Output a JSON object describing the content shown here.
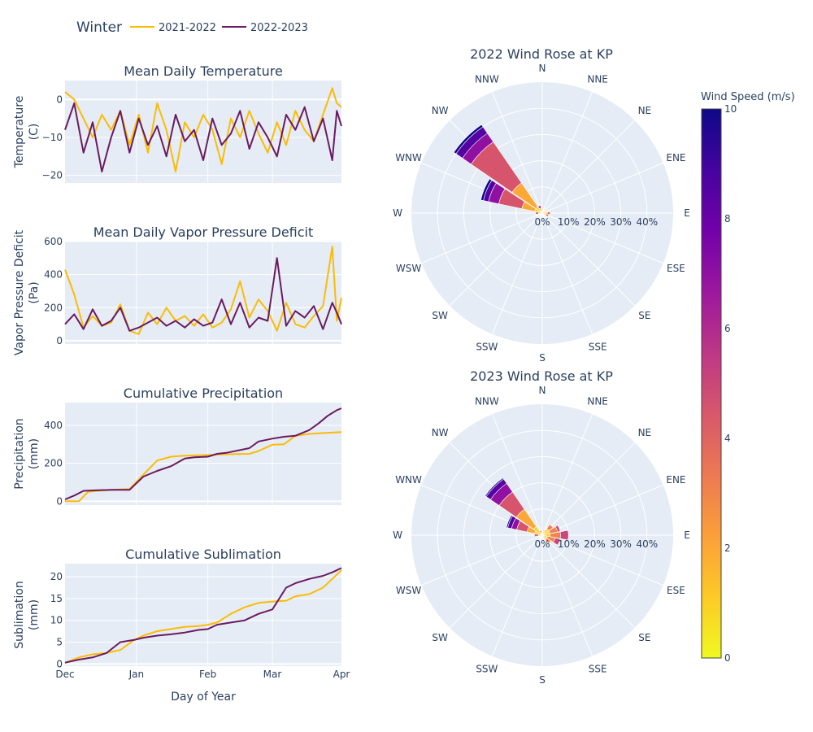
{
  "legend": {
    "title": "Winter",
    "items": [
      {
        "label": "2021-2022",
        "color": "#fbbc05"
      },
      {
        "label": "2022-2023",
        "color": "#6a1b5f"
      }
    ]
  },
  "chart_data": [
    {
      "type": "line",
      "title": "Mean Daily Temperature",
      "ylabel": "Temperature (C)",
      "ylim": [
        -22,
        5
      ],
      "yticks": [
        0,
        -10,
        -20
      ],
      "x_domain": [
        0,
        120
      ],
      "grid": true,
      "series": [
        {
          "name": "2021-2022",
          "color": "#fbbc05",
          "x": [
            0,
            4,
            8,
            12,
            16,
            20,
            24,
            28,
            32,
            36,
            40,
            44,
            48,
            52,
            56,
            60,
            64,
            68,
            72,
            76,
            80,
            84,
            88,
            92,
            96,
            100,
            104,
            108,
            112,
            116,
            118,
            120
          ],
          "y": [
            2,
            0,
            -5,
            -10,
            -4,
            -8,
            -3,
            -12,
            -4,
            -14,
            -1,
            -8,
            -19,
            -6,
            -10,
            -4,
            -8,
            -17,
            -5,
            -10,
            -3,
            -9,
            -14,
            -6,
            -12,
            -3,
            -8,
            -11,
            -4,
            3,
            -1,
            -2
          ]
        },
        {
          "name": "2022-2023",
          "color": "#6a1b5f",
          "x": [
            0,
            4,
            8,
            12,
            16,
            20,
            24,
            28,
            32,
            36,
            40,
            44,
            48,
            52,
            56,
            60,
            64,
            68,
            72,
            76,
            80,
            84,
            88,
            92,
            96,
            100,
            104,
            108,
            112,
            116,
            118,
            120
          ],
          "y": [
            -8,
            -1,
            -14,
            -6,
            -19,
            -10,
            -3,
            -14,
            -5,
            -12,
            -7,
            -15,
            -4,
            -11,
            -8,
            -16,
            -5,
            -12,
            -9,
            -3,
            -13,
            -6,
            -10,
            -15,
            -4,
            -8,
            -2,
            -11,
            -5,
            -16,
            -3,
            -7
          ]
        }
      ]
    },
    {
      "type": "line",
      "title": "Mean Daily Vapor Pressure Deficit",
      "ylabel": "Vapor Pressure Deficit (Pa)",
      "ylim": [
        -20,
        600
      ],
      "yticks": [
        0,
        200,
        400,
        600
      ],
      "x_domain": [
        0,
        120
      ],
      "grid": true,
      "series": [
        {
          "name": "2021-2022",
          "color": "#fbbc05",
          "x": [
            0,
            4,
            8,
            12,
            16,
            20,
            24,
            28,
            32,
            36,
            40,
            44,
            48,
            52,
            56,
            60,
            64,
            68,
            72,
            76,
            80,
            84,
            88,
            92,
            96,
            100,
            104,
            108,
            112,
            116,
            118,
            120
          ],
          "y": [
            430,
            280,
            80,
            150,
            90,
            110,
            220,
            60,
            40,
            170,
            100,
            200,
            120,
            150,
            90,
            160,
            80,
            110,
            190,
            360,
            140,
            250,
            180,
            60,
            230,
            100,
            80,
            150,
            210,
            570,
            120,
            260
          ]
        },
        {
          "name": "2022-2023",
          "color": "#6a1b5f",
          "x": [
            0,
            4,
            8,
            12,
            16,
            20,
            24,
            28,
            32,
            36,
            40,
            44,
            48,
            52,
            56,
            60,
            64,
            68,
            72,
            76,
            80,
            84,
            88,
            92,
            96,
            100,
            104,
            108,
            112,
            116,
            118,
            120
          ],
          "y": [
            100,
            160,
            70,
            190,
            90,
            120,
            200,
            60,
            80,
            110,
            140,
            90,
            120,
            80,
            130,
            90,
            110,
            250,
            100,
            230,
            80,
            140,
            120,
            500,
            90,
            180,
            140,
            210,
            70,
            230,
            170,
            100
          ]
        }
      ]
    },
    {
      "type": "line",
      "title": "Cumulative Precipitation",
      "ylabel": "Precipitation (mm)",
      "ylim": [
        -20,
        520
      ],
      "yticks": [
        0,
        200,
        400
      ],
      "x_domain": [
        0,
        120
      ],
      "grid": true,
      "series": [
        {
          "name": "2021-2022",
          "color": "#fbbc05",
          "x": [
            0,
            6,
            10,
            14,
            20,
            28,
            34,
            40,
            46,
            52,
            60,
            70,
            80,
            84,
            90,
            95,
            100,
            106,
            110,
            120
          ],
          "y": [
            0,
            0,
            50,
            55,
            60,
            65,
            140,
            215,
            235,
            240,
            243,
            248,
            250,
            265,
            298,
            300,
            345,
            355,
            358,
            365
          ]
        },
        {
          "name": "2022-2023",
          "color": "#6a1b5f",
          "x": [
            0,
            4,
            8,
            14,
            20,
            28,
            34,
            40,
            46,
            52,
            56,
            62,
            66,
            70,
            80,
            84,
            90,
            95,
            100,
            106,
            110,
            114,
            118,
            120
          ],
          "y": [
            10,
            30,
            55,
            58,
            60,
            60,
            130,
            160,
            185,
            225,
            232,
            235,
            250,
            255,
            280,
            315,
            330,
            340,
            345,
            375,
            410,
            450,
            480,
            490
          ]
        }
      ]
    },
    {
      "type": "line",
      "title": "Cumulative Sublimation",
      "ylabel": "Sublimation (mm)",
      "ylim": [
        -0.5,
        23
      ],
      "yticks": [
        0,
        5,
        10,
        15,
        20
      ],
      "x_domain": [
        0,
        120
      ],
      "xticks": [
        0,
        31,
        62,
        90,
        120
      ],
      "xticklabels": [
        "Dec",
        "Jan",
        "Feb",
        "Mar",
        "Apr"
      ],
      "xlabel": "Day of Year",
      "grid": true,
      "series": [
        {
          "name": "2021-2022",
          "color": "#fbbc05",
          "x": [
            0,
            6,
            12,
            18,
            24,
            30,
            34,
            40,
            46,
            52,
            58,
            62,
            66,
            72,
            78,
            84,
            90,
            96,
            100,
            106,
            112,
            116,
            120
          ],
          "y": [
            0.2,
            1.5,
            2.2,
            2.5,
            3.2,
            5.5,
            6.5,
            7.5,
            8.0,
            8.5,
            8.7,
            9.0,
            9.5,
            11.5,
            13.0,
            14.0,
            14.3,
            14.5,
            15.5,
            16.0,
            17.5,
            19.5,
            21.5
          ]
        },
        {
          "name": "2022-2023",
          "color": "#6a1b5f",
          "x": [
            0,
            6,
            12,
            18,
            24,
            30,
            34,
            40,
            46,
            52,
            58,
            62,
            66,
            72,
            78,
            84,
            90,
            96,
            100,
            106,
            112,
            116,
            120
          ],
          "y": [
            0.3,
            1.0,
            1.5,
            2.5,
            5.0,
            5.5,
            6.0,
            6.5,
            6.8,
            7.2,
            7.8,
            8.0,
            9.0,
            9.5,
            10.0,
            11.5,
            12.5,
            17.5,
            18.5,
            19.5,
            20.2,
            21.0,
            22.0
          ]
        }
      ]
    },
    {
      "type": "barpolar",
      "title": "2022 Wind Rose at KP",
      "directions": [
        "N",
        "NNE",
        "NE",
        "ENE",
        "E",
        "ESE",
        "SE",
        "SSE",
        "S",
        "SSW",
        "SW",
        "WSW",
        "W",
        "WNW",
        "NW",
        "NNW"
      ],
      "radial_ticks": [
        "0%",
        "10%",
        "20%",
        "30%",
        "40%"
      ],
      "radial_range": [
        0,
        50
      ],
      "bins": [
        {
          "direction": "NW",
          "speed_segments": [
            {
              "speed": 1,
              "upto": 3
            },
            {
              "speed": 2,
              "upto": 14
            },
            {
              "speed": 4.5,
              "upto": 33
            },
            {
              "speed": 7,
              "upto": 37
            },
            {
              "speed": 8.5,
              "upto": 40
            },
            {
              "speed": 10,
              "upto": 41
            }
          ]
        },
        {
          "direction": "WNW",
          "speed_segments": [
            {
              "speed": 1,
              "upto": 3
            },
            {
              "speed": 2,
              "upto": 8
            },
            {
              "speed": 4.5,
              "upto": 17
            },
            {
              "speed": 7,
              "upto": 21
            },
            {
              "speed": 8.5,
              "upto": 23
            },
            {
              "speed": 10,
              "upto": 24
            }
          ]
        },
        {
          "direction": "NNW",
          "speed_segments": [
            {
              "speed": 1,
              "upto": 1
            },
            {
              "speed": 2,
              "upto": 2
            },
            {
              "speed": 6,
              "upto": 3
            }
          ]
        },
        {
          "direction": "N",
          "speed_segments": [
            {
              "speed": 1,
              "upto": 1
            }
          ]
        },
        {
          "direction": "NNE",
          "speed_segments": [
            {
              "speed": 1,
              "upto": 1
            }
          ]
        },
        {
          "direction": "NE",
          "speed_segments": [
            {
              "speed": 1,
              "upto": 1.2
            }
          ]
        },
        {
          "direction": "ENE",
          "speed_segments": [
            {
              "speed": 1,
              "upto": 1.5
            }
          ]
        },
        {
          "direction": "E",
          "speed_segments": [
            {
              "speed": 1,
              "upto": 2
            },
            {
              "speed": 4,
              "upto": 3
            }
          ]
        },
        {
          "direction": "ESE",
          "speed_segments": [
            {
              "speed": 1,
              "upto": 1.5
            },
            {
              "speed": 4,
              "upto": 2.5
            }
          ]
        },
        {
          "direction": "SE",
          "speed_segments": [
            {
              "speed": 1,
              "upto": 1
            }
          ]
        },
        {
          "direction": "W",
          "speed_segments": [
            {
              "speed": 1,
              "upto": 1.5
            },
            {
              "speed": 5,
              "upto": 2.5
            }
          ]
        }
      ]
    },
    {
      "type": "barpolar",
      "title": "2023 Wind Rose at KP",
      "directions": [
        "N",
        "NNE",
        "NE",
        "ENE",
        "E",
        "ESE",
        "SE",
        "SSE",
        "S",
        "SSW",
        "SW",
        "WSW",
        "W",
        "WNW",
        "NW",
        "NNW"
      ],
      "radial_ticks": [
        "0%",
        "10%",
        "20%",
        "30%",
        "40%"
      ],
      "radial_range": [
        0,
        50
      ],
      "bins": [
        {
          "direction": "NW",
          "speed_segments": [
            {
              "speed": 1,
              "upto": 4
            },
            {
              "speed": 2,
              "upto": 12
            },
            {
              "speed": 4.5,
              "upto": 20
            },
            {
              "speed": 7,
              "upto": 24
            },
            {
              "speed": 8.5,
              "upto": 26
            },
            {
              "speed": 10,
              "upto": 26.5
            }
          ]
        },
        {
          "direction": "WNW",
          "speed_segments": [
            {
              "speed": 1,
              "upto": 3
            },
            {
              "speed": 2,
              "upto": 6
            },
            {
              "speed": 4.5,
              "upto": 10
            },
            {
              "speed": 7,
              "upto": 12
            },
            {
              "speed": 8.5,
              "upto": 13.5
            },
            {
              "speed": 10,
              "upto": 14
            }
          ]
        },
        {
          "direction": "NNW",
          "speed_segments": [
            {
              "speed": 1,
              "upto": 1
            },
            {
              "speed": 3,
              "upto": 2
            }
          ]
        },
        {
          "direction": "N",
          "speed_segments": [
            {
              "speed": 1,
              "upto": 1
            }
          ]
        },
        {
          "direction": "NNE",
          "speed_segments": [
            {
              "speed": 1,
              "upto": 1.5
            },
            {
              "speed": 3,
              "upto": 2
            }
          ]
        },
        {
          "direction": "NE",
          "speed_segments": [
            {
              "speed": 1,
              "upto": 3
            },
            {
              "speed": 3,
              "upto": 5
            }
          ]
        },
        {
          "direction": "ENE",
          "speed_segments": [
            {
              "speed": 1,
              "upto": 3
            },
            {
              "speed": 3,
              "upto": 6
            },
            {
              "speed": 5,
              "upto": 7
            }
          ]
        },
        {
          "direction": "E",
          "speed_segments": [
            {
              "speed": 1,
              "upto": 3
            },
            {
              "speed": 3,
              "upto": 7
            },
            {
              "speed": 5,
              "upto": 10
            }
          ]
        },
        {
          "direction": "ESE",
          "speed_segments": [
            {
              "speed": 1,
              "upto": 2
            },
            {
              "speed": 3,
              "upto": 5
            },
            {
              "speed": 5,
              "upto": 7
            }
          ]
        },
        {
          "direction": "SE",
          "speed_segments": [
            {
              "speed": 1,
              "upto": 2
            },
            {
              "speed": 3,
              "upto": 4
            }
          ]
        },
        {
          "direction": "SSE",
          "speed_segments": [
            {
              "speed": 1,
              "upto": 1
            }
          ]
        },
        {
          "direction": "W",
          "speed_segments": [
            {
              "speed": 1,
              "upto": 1.5
            },
            {
              "speed": 4,
              "upto": 3
            }
          ]
        }
      ]
    }
  ],
  "colorbar": {
    "title": "Wind Speed (m/s)",
    "range": [
      0,
      10
    ],
    "ticks": [
      0,
      2,
      4,
      6,
      8,
      10
    ],
    "colorscale": [
      "#f0f921",
      "#fdca26",
      "#fb9f3a",
      "#ed7953",
      "#d8576b",
      "#bd3786",
      "#9c179e",
      "#7201a8",
      "#46039f",
      "#0d0887"
    ]
  }
}
